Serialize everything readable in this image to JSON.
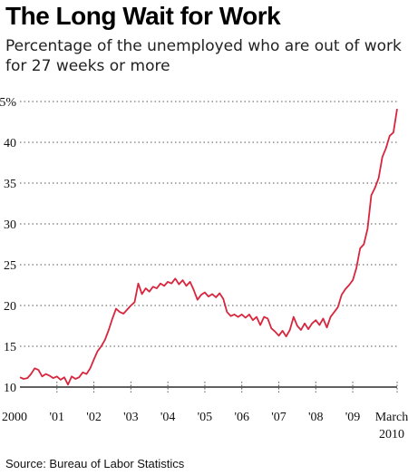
{
  "title": "The Long Wait for Work",
  "subtitle": "Percentage of the unemployed who are out of work for 27 weeks or more",
  "source": "Source: Bureau of Labor Statistics",
  "chart_data": {
    "type": "line",
    "title": "The Long Wait for Work",
    "subtitle": "Percentage of the unemployed who are out of work for 27 weeks or more",
    "ylim": [
      10,
      45
    ],
    "xlim": [
      2000.0,
      2010.2
    ],
    "grid": true,
    "line_color": "#d7263d",
    "y_ticks": [
      {
        "value": 10,
        "label": "10"
      },
      {
        "value": 15,
        "label": "15"
      },
      {
        "value": 20,
        "label": "20"
      },
      {
        "value": 25,
        "label": "25"
      },
      {
        "value": 30,
        "label": "30"
      },
      {
        "value": 35,
        "label": "35"
      },
      {
        "value": 40,
        "label": "40"
      },
      {
        "value": 45,
        "label": "45%"
      }
    ],
    "x_ticks": [
      {
        "value": 2000,
        "label": "2000"
      },
      {
        "value": 2001,
        "label": "'01"
      },
      {
        "value": 2002,
        "label": "'02"
      },
      {
        "value": 2003,
        "label": "'03"
      },
      {
        "value": 2004,
        "label": "'04"
      },
      {
        "value": 2005,
        "label": "'05"
      },
      {
        "value": 2006,
        "label": "'06"
      },
      {
        "value": 2007,
        "label": "'07"
      },
      {
        "value": 2008,
        "label": "'08"
      },
      {
        "value": 2009,
        "label": "'09"
      },
      {
        "value": 2010.2,
        "label": "March",
        "label2": "2010"
      }
    ],
    "series": [
      {
        "points": [
          [
            2000.0,
            11.2
          ],
          [
            2000.1,
            11.0
          ],
          [
            2000.2,
            11.1
          ],
          [
            2000.3,
            11.6
          ],
          [
            2000.4,
            12.3
          ],
          [
            2000.5,
            12.1
          ],
          [
            2000.6,
            11.3
          ],
          [
            2000.7,
            11.6
          ],
          [
            2000.8,
            11.4
          ],
          [
            2000.9,
            11.1
          ],
          [
            2001.0,
            11.3
          ],
          [
            2001.1,
            10.9
          ],
          [
            2001.2,
            11.2
          ],
          [
            2001.3,
            10.3
          ],
          [
            2001.4,
            11.3
          ],
          [
            2001.5,
            11.0
          ],
          [
            2001.6,
            11.2
          ],
          [
            2001.7,
            11.8
          ],
          [
            2001.8,
            11.6
          ],
          [
            2001.9,
            12.3
          ],
          [
            2002.0,
            13.4
          ],
          [
            2002.1,
            14.4
          ],
          [
            2002.2,
            15.0
          ],
          [
            2002.3,
            15.8
          ],
          [
            2002.4,
            17.0
          ],
          [
            2002.5,
            18.4
          ],
          [
            2002.6,
            19.6
          ],
          [
            2002.7,
            19.2
          ],
          [
            2002.8,
            19.0
          ],
          [
            2002.9,
            19.5
          ],
          [
            2003.0,
            20.0
          ],
          [
            2003.1,
            20.4
          ],
          [
            2003.2,
            22.7
          ],
          [
            2003.3,
            21.4
          ],
          [
            2003.4,
            22.1
          ],
          [
            2003.5,
            21.7
          ],
          [
            2003.6,
            22.3
          ],
          [
            2003.7,
            22.1
          ],
          [
            2003.8,
            22.7
          ],
          [
            2003.9,
            22.4
          ],
          [
            2004.0,
            22.9
          ],
          [
            2004.1,
            22.7
          ],
          [
            2004.2,
            23.3
          ],
          [
            2004.3,
            22.6
          ],
          [
            2004.4,
            23.1
          ],
          [
            2004.5,
            22.4
          ],
          [
            2004.6,
            22.9
          ],
          [
            2004.7,
            21.9
          ],
          [
            2004.8,
            20.7
          ],
          [
            2004.9,
            21.3
          ],
          [
            2005.0,
            21.6
          ],
          [
            2005.1,
            21.1
          ],
          [
            2005.2,
            21.4
          ],
          [
            2005.3,
            21.0
          ],
          [
            2005.4,
            21.5
          ],
          [
            2005.5,
            20.8
          ],
          [
            2005.6,
            19.2
          ],
          [
            2005.7,
            18.7
          ],
          [
            2005.8,
            18.9
          ],
          [
            2005.9,
            18.6
          ],
          [
            2006.0,
            18.9
          ],
          [
            2006.1,
            18.5
          ],
          [
            2006.2,
            18.9
          ],
          [
            2006.3,
            18.2
          ],
          [
            2006.4,
            18.6
          ],
          [
            2006.5,
            17.6
          ],
          [
            2006.6,
            18.6
          ],
          [
            2006.7,
            18.4
          ],
          [
            2006.8,
            17.2
          ],
          [
            2006.9,
            16.8
          ],
          [
            2007.0,
            16.3
          ],
          [
            2007.1,
            16.9
          ],
          [
            2007.2,
            16.2
          ],
          [
            2007.3,
            17.0
          ],
          [
            2007.4,
            18.6
          ],
          [
            2007.5,
            17.5
          ],
          [
            2007.6,
            17.0
          ],
          [
            2007.7,
            17.8
          ],
          [
            2007.8,
            17.1
          ],
          [
            2007.9,
            17.8
          ],
          [
            2008.0,
            18.2
          ],
          [
            2008.1,
            17.6
          ],
          [
            2008.2,
            18.4
          ],
          [
            2008.3,
            17.3
          ],
          [
            2008.4,
            18.6
          ],
          [
            2008.5,
            19.2
          ],
          [
            2008.6,
            19.8
          ],
          [
            2008.7,
            21.3
          ],
          [
            2008.8,
            22.0
          ],
          [
            2008.9,
            22.5
          ],
          [
            2009.0,
            23.1
          ],
          [
            2009.1,
            24.6
          ],
          [
            2009.2,
            27.0
          ],
          [
            2009.3,
            27.5
          ],
          [
            2009.4,
            29.4
          ],
          [
            2009.5,
            33.5
          ],
          [
            2009.6,
            34.4
          ],
          [
            2009.7,
            35.6
          ],
          [
            2009.8,
            38.2
          ],
          [
            2009.9,
            39.3
          ],
          [
            2010.0,
            40.8
          ],
          [
            2010.1,
            41.2
          ],
          [
            2010.2,
            44.1
          ]
        ]
      }
    ]
  }
}
